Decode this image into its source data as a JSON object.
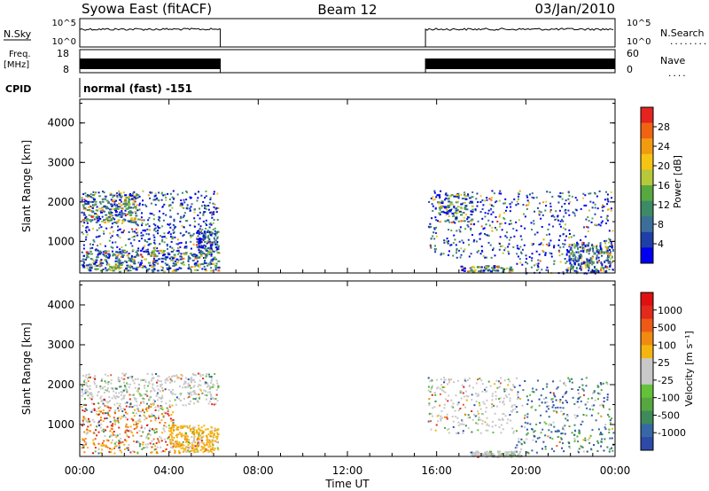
{
  "header": {
    "station": "Syowa East (fitACF)",
    "beam": "Beam 12",
    "date": "03/Jan/2010"
  },
  "side_labels": {
    "nsky": "N.Sky",
    "freq": "Freq.",
    "freq_unit": "[MHz]",
    "cpid": "CPID",
    "nsearch": "N.Search",
    "nsearch_dots": "........",
    "nave": "Nave",
    "nave_dots": "...."
  },
  "cpid_text": "normal (fast) -151",
  "noise_panel": {
    "ticks_left": [
      "10^5",
      "10^0"
    ],
    "ticks_right": [
      "10^5",
      "10^0"
    ],
    "active_hours": [
      [
        0.0,
        6.3
      ],
      [
        15.5,
        24.0
      ]
    ]
  },
  "freq_panel": {
    "ticks_left": [
      "18",
      "8"
    ],
    "ticks_right": [
      "60",
      "0"
    ],
    "ylim_left": [
      8,
      18
    ],
    "ylim_right": [
      0,
      60
    ],
    "active_hours": [
      [
        0.0,
        6.3
      ],
      [
        15.5,
        24.0
      ]
    ]
  },
  "chart_data": [
    {
      "type": "heatmap",
      "title": "",
      "xlabel": "",
      "ylabel": "Slant Range [km]",
      "y_ticks": [
        "1000",
        "2000",
        "3000",
        "4000"
      ],
      "ylim": [
        200,
        4600
      ],
      "xlim": [
        0,
        24
      ],
      "colorbar": {
        "label": "Power [dB]",
        "ticks": [
          "4",
          "8",
          "12",
          "16",
          "20",
          "24",
          "28"
        ],
        "colors": [
          "#0000ee",
          "#1f3fa8",
          "#3b6f9a",
          "#3d8a66",
          "#58a840",
          "#b6c93a",
          "#f5c415",
          "#f29a10",
          "#ef6312",
          "#e52420"
        ]
      }
    },
    {
      "type": "heatmap",
      "title": "",
      "xlabel": "Time UT",
      "ylabel": "Slant Range [km]",
      "x_ticks": [
        "00:00",
        "04:00",
        "08:00",
        "12:00",
        "16:00",
        "20:00",
        "00:00"
      ],
      "y_ticks": [
        "1000",
        "2000",
        "3000",
        "4000"
      ],
      "ylim": [
        200,
        4600
      ],
      "xlim": [
        0,
        24
      ],
      "colorbar": {
        "label": "Velocity [m s⁻¹]",
        "ticks": [
          "1000",
          "500",
          "100",
          "25",
          "-25",
          "-100",
          "-500",
          "-1000"
        ],
        "colors": [
          "#2e4aa8",
          "#3668a6",
          "#3f8a5a",
          "#56a83e",
          "#62c23a",
          "#c8c8c8",
          "#c8c8c8",
          "#f5b510",
          "#f08a10",
          "#ec5a16",
          "#e32a1c",
          "#e01010"
        ]
      }
    }
  ]
}
